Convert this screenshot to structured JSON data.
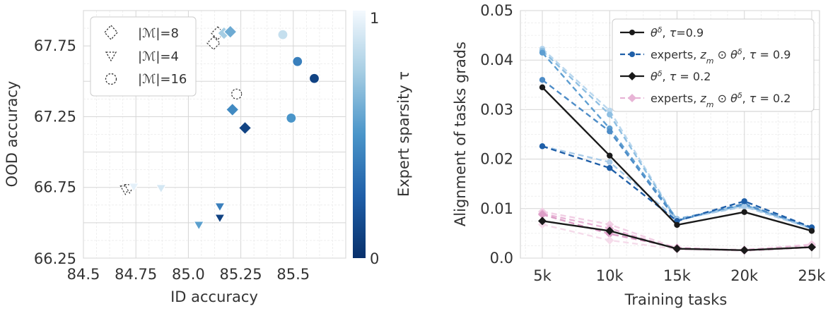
{
  "chart_data": [
    {
      "type": "scatter",
      "title": "",
      "xlabel": "ID accuracy",
      "ylabel": "OOD accuracy",
      "xlim": [
        84.5,
        85.75
      ],
      "ylim": [
        66.25,
        68.0
      ],
      "x_ticks": [
        "84.5",
        "84.75",
        "85.0",
        "85.25",
        "85.5"
      ],
      "y_ticks": [
        "66.25",
        "66.75",
        "67.25",
        "67.75"
      ],
      "grid": true,
      "colorbar": {
        "label": "Expert sparsity τ",
        "ticks": [
          "0",
          "1"
        ],
        "range": [
          0,
          1
        ],
        "colormap": "Blues_r"
      },
      "legend": {
        "position": "top-left",
        "entries": [
          {
            "label": "|ℳ|=8",
            "marker": "diamond"
          },
          {
            "label": "|ℳ|=4",
            "marker": "triangle-down"
          },
          {
            "label": "|ℳ|=16",
            "marker": "circle"
          }
        ]
      },
      "series": [
        {
          "marker": "diamond",
          "points": [
            {
              "x": 85.12,
              "y": 67.77,
              "tau": 1.0
            },
            {
              "x": 85.14,
              "y": 67.84,
              "tau": 1.0
            },
            {
              "x": 85.17,
              "y": 67.84,
              "tau": 0.75
            },
            {
              "x": 85.2,
              "y": 67.85,
              "tau": 0.6
            },
            {
              "x": 85.21,
              "y": 67.3,
              "tau": 0.45
            },
            {
              "x": 85.27,
              "y": 67.17,
              "tau": 0.1
            }
          ]
        },
        {
          "marker": "triangle-down",
          "points": [
            {
              "x": 84.7,
              "y": 66.73,
              "tau": 1.0
            },
            {
              "x": 84.72,
              "y": 66.74,
              "tau": 1.0
            },
            {
              "x": 84.74,
              "y": 66.75,
              "tau": 0.95
            },
            {
              "x": 84.87,
              "y": 66.74,
              "tau": 0.9
            },
            {
              "x": 85.05,
              "y": 66.48,
              "tau": 0.55
            },
            {
              "x": 85.15,
              "y": 66.61,
              "tau": 0.4
            },
            {
              "x": 85.15,
              "y": 66.53,
              "tau": 0.1
            }
          ]
        },
        {
          "marker": "circle",
          "points": [
            {
              "x": 85.23,
              "y": 67.41,
              "tau": 1.0
            },
            {
              "x": 85.45,
              "y": 67.83,
              "tau": 0.85
            },
            {
              "x": 85.49,
              "y": 67.24,
              "tau": 0.5
            },
            {
              "x": 85.52,
              "y": 67.64,
              "tau": 0.4
            },
            {
              "x": 85.6,
              "y": 67.52,
              "tau": 0.1
            }
          ]
        }
      ]
    },
    {
      "type": "line",
      "title": "",
      "xlabel": "Training tasks",
      "ylabel": "Alignment of tasks grads",
      "categories": [
        "5k",
        "10k",
        "15k",
        "20k",
        "25k"
      ],
      "ylim": [
        0.0,
        0.05
      ],
      "y_ticks": [
        "0.0",
        "0.01",
        "0.02",
        "0.03",
        "0.04",
        "0.05"
      ],
      "grid": true,
      "legend": {
        "position": "top-right",
        "entries": [
          {
            "label": "θ^δ, τ=0.9",
            "color": "#1a1a1a",
            "dashed": false,
            "marker": "circle"
          },
          {
            "label": "experts, z_m ⊙ θ^δ, τ = 0.9",
            "color": "#1f5fa8",
            "dashed": true,
            "marker": "circle"
          },
          {
            "label": "θ^δ, τ = 0.2",
            "color": "#1a1a1a",
            "dashed": false,
            "marker": "diamond"
          },
          {
            "label": "experts, z_m ⊙ θ^δ, τ = 0.2",
            "color": "#e8b4d6",
            "dashed": true,
            "marker": "diamond"
          }
        ]
      },
      "series": [
        {
          "values": [
            0.0345,
            0.0207,
            0.0067,
            0.0093,
            0.0055
          ],
          "color": "#1a1a1a",
          "dashed": false,
          "marker": "circle"
        },
        {
          "values": [
            0.0423,
            0.0298,
            0.0077,
            0.0105,
            0.006
          ],
          "color": "#b9d7ee",
          "dashed": true,
          "marker": "circle"
        },
        {
          "values": [
            0.0419,
            0.029,
            0.0076,
            0.0108,
            0.0061
          ],
          "color": "#8fbfe2",
          "dashed": true,
          "marker": "circle"
        },
        {
          "values": [
            0.0415,
            0.0262,
            0.0079,
            0.0107,
            0.0062
          ],
          "color": "#5e9ed1",
          "dashed": true,
          "marker": "circle"
        },
        {
          "values": [
            0.036,
            0.0256,
            0.0076,
            0.011,
            0.006
          ],
          "color": "#4d8cc7",
          "dashed": true,
          "marker": "circle"
        },
        {
          "values": [
            0.0226,
            0.0194,
            0.0078,
            0.0104,
            0.006
          ],
          "color": "#a9cbe8",
          "dashed": true,
          "marker": "circle"
        },
        {
          "values": [
            0.0226,
            0.0182,
            0.0075,
            0.0115,
            0.0062
          ],
          "color": "#1f5fa8",
          "dashed": true,
          "marker": "circle"
        },
        {
          "values": [
            0.0075,
            0.0055,
            0.0019,
            0.0016,
            0.0022
          ],
          "color": "#1a1a1a",
          "dashed": false,
          "marker": "diamond"
        },
        {
          "values": [
            0.0094,
            0.0068,
            0.002,
            0.0016,
            0.0028
          ],
          "color": "#f1cfe4",
          "dashed": true,
          "marker": "diamond"
        },
        {
          "values": [
            0.009,
            0.006,
            0.0018,
            0.0017,
            0.0025
          ],
          "color": "#e8b4d6",
          "dashed": true,
          "marker": "diamond"
        },
        {
          "values": [
            0.0088,
            0.0049,
            0.0021,
            0.0015,
            0.0022
          ],
          "color": "#dc9ec6",
          "dashed": true,
          "marker": "diamond"
        },
        {
          "values": [
            0.0068,
            0.0036,
            0.0018,
            0.0015,
            0.0024
          ],
          "color": "#f5dbea",
          "dashed": true,
          "marker": "diamond"
        }
      ]
    }
  ]
}
